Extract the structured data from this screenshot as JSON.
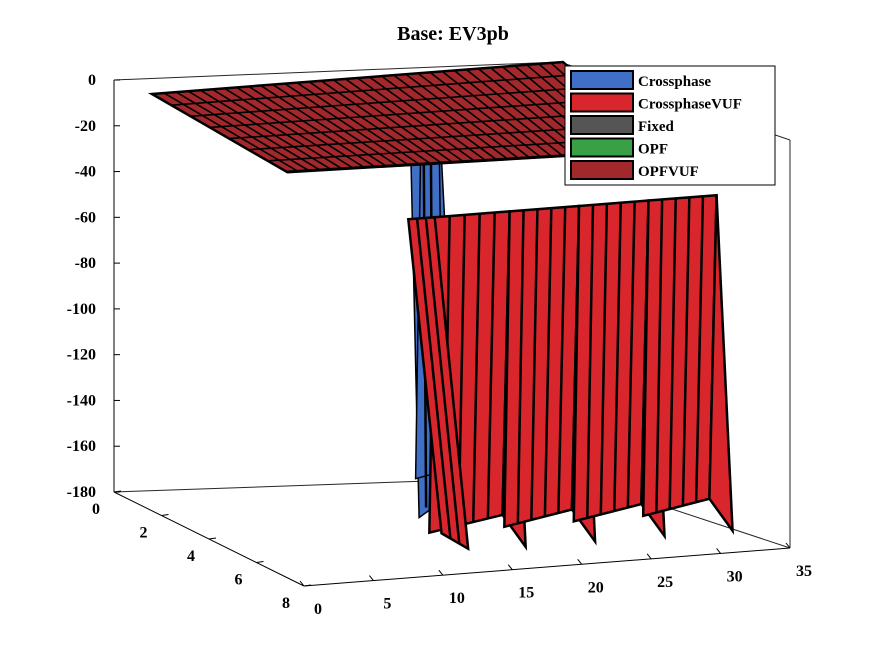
{
  "chart_data": {
    "type": "surface3d",
    "title": "Base: EV3pb",
    "xlabel": "",
    "ylabel": "",
    "zlabel": "",
    "x_ticks": [
      "0",
      "5",
      "10",
      "15",
      "20",
      "25",
      "30",
      "35"
    ],
    "y_ticks": [
      "0",
      "2",
      "4",
      "6",
      "8"
    ],
    "z_ticks": [
      "0",
      "-20",
      "-40",
      "-60",
      "-80",
      "-100",
      "-120",
      "-140",
      "-160",
      "-180"
    ],
    "xlim": [
      0,
      35
    ],
    "ylim": [
      0,
      8
    ],
    "zlim": [
      -180,
      0
    ],
    "legend_position": "top-right",
    "series": [
      {
        "name": "Crossphase",
        "color": "#3f6fc6"
      },
      {
        "name": "CrossphaseVUF",
        "color": "#d8262c"
      },
      {
        "name": "Fixed",
        "color": "#555555"
      },
      {
        "name": "OPF",
        "color": "#3aa046"
      },
      {
        "name": "OPFVUF",
        "color": "#a3282b"
      }
    ],
    "surface_summary": {
      "plateau_z": 0,
      "drop_region_x": [
        12,
        35
      ],
      "drop_min_z": -180
    }
  }
}
